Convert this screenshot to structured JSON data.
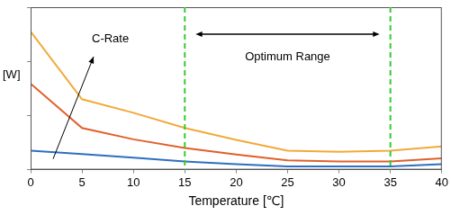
{
  "chart_data": {
    "type": "line",
    "x_label": "Temperature [℃]",
    "y_label": "[W]",
    "x": [
      0,
      5,
      10,
      15,
      20,
      25,
      30,
      35,
      40
    ],
    "series": [
      {
        "color": "#2e6fc0",
        "values": [
          0.35,
          0.29,
          0.22,
          0.15,
          0.1,
          0.06,
          0.06,
          0.06,
          0.1
        ]
      },
      {
        "color": "#e0602a",
        "values": [
          1.59,
          0.77,
          0.56,
          0.4,
          0.28,
          0.17,
          0.15,
          0.15,
          0.21
        ]
      },
      {
        "color": "#f2a93b",
        "values": [
          2.55,
          1.3,
          1.05,
          0.77,
          0.55,
          0.35,
          0.33,
          0.35,
          0.43
        ]
      }
    ],
    "xlim": [
      0,
      40
    ],
    "xticks": [
      0,
      5,
      10,
      15,
      20,
      25,
      30,
      35,
      40
    ],
    "ylim": [
      0,
      3
    ],
    "yticks": [
      0,
      1,
      2,
      3
    ],
    "tick_labels": "x",
    "grid": false,
    "c_rate_label": "C-Rate",
    "optimum_range": {
      "x": [
        15,
        35
      ],
      "label": "Optimum Range",
      "color": "#33cc33",
      "line_style": "dashed"
    }
  }
}
